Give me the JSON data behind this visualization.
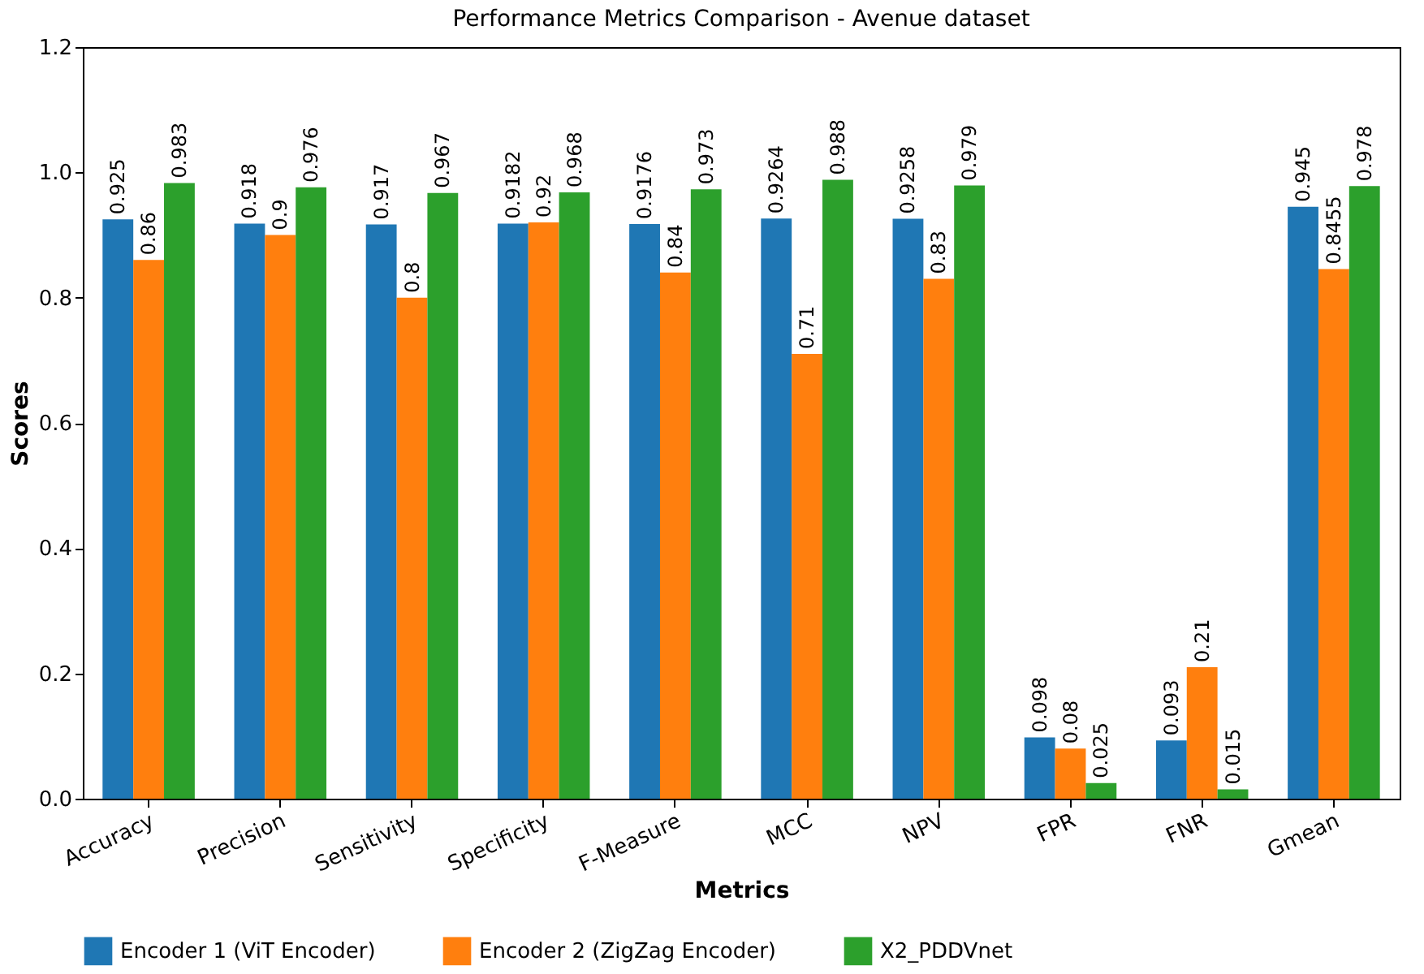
{
  "chart_data": {
    "type": "bar",
    "title": "Performance Metrics Comparison - Avenue dataset",
    "xlabel": "Metrics",
    "ylabel": "Scores",
    "categories": [
      "Accuracy",
      "Precision",
      "Sensitivity",
      "Specificity",
      "F-Measure",
      "MCC",
      "NPV",
      "FPR",
      "FNR",
      "Gmean"
    ],
    "series": [
      {
        "name": "Encoder 1 (ViT Encoder)",
        "color": "#1f77b4",
        "values": [
          0.925,
          0.918,
          0.917,
          0.9182,
          0.9176,
          0.9264,
          0.9258,
          0.098,
          0.093,
          0.945
        ]
      },
      {
        "name": "Encoder 2 (ZigZag Encoder)",
        "color": "#ff7f0e",
        "values": [
          0.86,
          0.9,
          0.8,
          0.92,
          0.84,
          0.71,
          0.83,
          0.08,
          0.21,
          0.8455
        ]
      },
      {
        "name": "X2_PDDVnet",
        "color": "#2ca02c",
        "values": [
          0.983,
          0.976,
          0.967,
          0.968,
          0.973,
          0.988,
          0.979,
          0.025,
          0.015,
          0.978
        ]
      }
    ],
    "ylim": [
      0,
      1.2
    ],
    "yticks": [
      {
        "value": 0,
        "label": "0.0"
      },
      {
        "value": 0.2,
        "label": "0.2"
      },
      {
        "value": 0.4,
        "label": "0.4"
      },
      {
        "value": 0.6,
        "label": "0.6"
      },
      {
        "value": 0.8,
        "label": "0.8"
      },
      {
        "value": 1.0,
        "label": "1.0"
      },
      {
        "value": 1.2,
        "label": "1.2"
      }
    ],
    "data_labels": true,
    "legend": "bottom",
    "grid": false
  }
}
